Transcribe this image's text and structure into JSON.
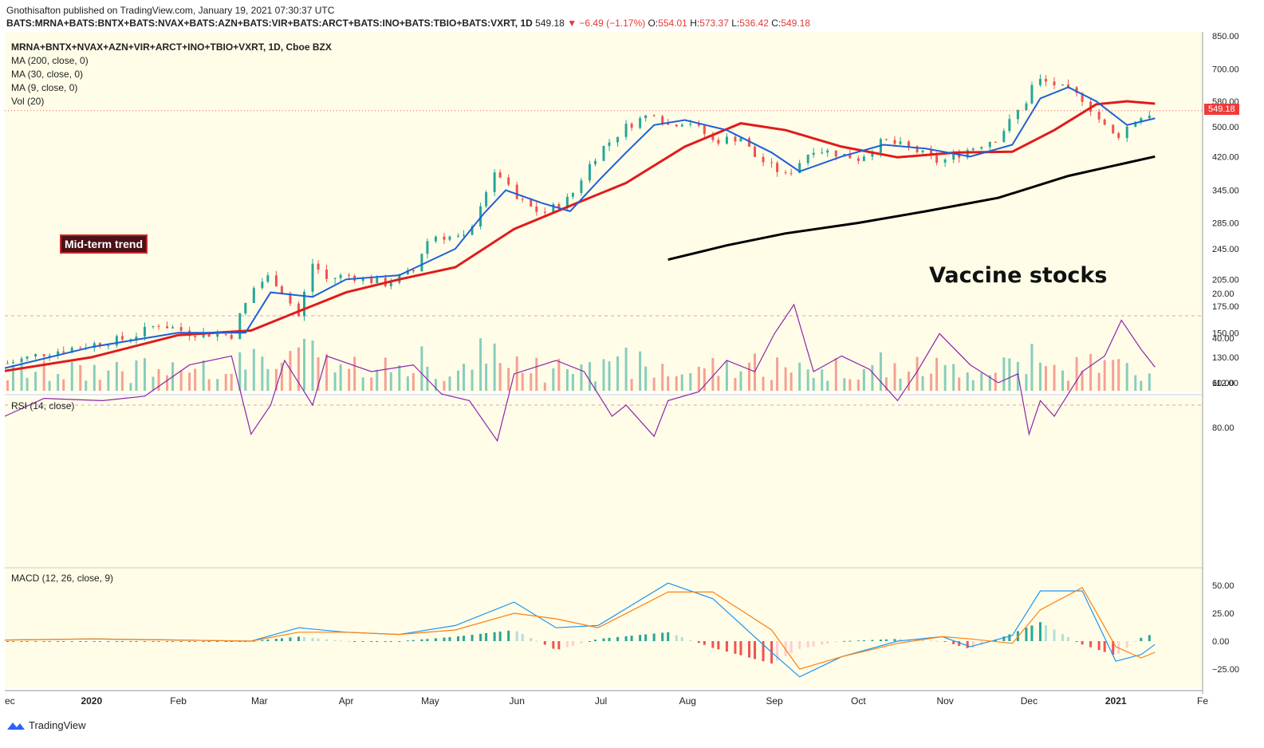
{
  "header": {
    "publisher_line": "Gnothisafton published on TradingView.com, January 19, 2021 07:30:37 UTC",
    "symbol": "BATS:MRNA+BATS:BNTX+BATS:NVAX+BATS:AZN+BATS:VIR+BATS:ARCT+BATS:INO+BATS:TBIO+BATS:VXRT, 1D",
    "last": "549.18",
    "change": "▼ −6.49 (−1.17%)",
    "o_label": "O:",
    "o_val": "554.01",
    "h_label": "H:",
    "h_val": "573.37",
    "l_label": "L:",
    "l_val": "536.42",
    "c_label": "C:",
    "c_val": "549.18"
  },
  "legend": {
    "title": "MRNA+BNTX+NVAX+AZN+VIR+ARCT+INO+TBIO+VXRT, 1D, Cboe BZX",
    "ma200": "MA (200, close, 0)",
    "ma30": "MA (30, close, 0)",
    "ma9": "MA (9, close, 0)",
    "vol": "Vol (20)",
    "rsi": "RSI (14, close)",
    "macd": "MACD (12, 26, close, 9)"
  },
  "annotations": {
    "trend_box": "Mid-term trend",
    "vaccine": "Vaccine stocks",
    "last_price_tag": "549.18"
  },
  "footer": {
    "brand": "TradingView"
  },
  "colors": {
    "ma9": "#1e5fd8",
    "ma30": "#e01b1b",
    "ma200": "#000000",
    "up": "#26a69a",
    "down": "#ef5350",
    "rsi": "#8e24aa",
    "macd": "#2196f3",
    "signal": "#ff7f0e",
    "pane_bg": "#fffde8"
  },
  "chart_data": [
    {
      "type": "candlestick",
      "title": "MRNA+BNTX+NVAX+AZN+VIR+ARCT+INO+TBIO+VXRT, 1D",
      "y_scale": "log",
      "y_ticks": [
        112,
        130,
        150,
        175,
        205,
        245,
        285,
        345,
        420,
        500,
        580,
        700,
        850
      ],
      "y_tick_labels": [
        "112.00",
        "130.00",
        "150.00",
        "175.00",
        "205.00",
        "245.00",
        "285.00",
        "345.00",
        "420.00",
        "500.00",
        "580.00",
        "700.00",
        "850.00"
      ],
      "x_labels": [
        "ec",
        "2020",
        "Feb",
        "Mar",
        "Apr",
        "May",
        "Jun",
        "Jul",
        "Aug",
        "Sep",
        "Oct",
        "Nov",
        "Dec",
        "2021",
        "Fe"
      ],
      "x_label_dates": [
        "2019-12-01",
        "2020-01-01",
        "2020-02-01",
        "2020-03-01",
        "2020-04-01",
        "2020-05-01",
        "2020-06-01",
        "2020-07-01",
        "2020-08-01",
        "2020-09-01",
        "2020-10-01",
        "2020-11-01",
        "2020-12-01",
        "2021-01-01",
        "2021-02-01"
      ],
      "x_range": [
        "2019-12-01",
        "2021-02-01"
      ],
      "close_series": [
        [
          "2019-12-01",
          125
        ],
        [
          "2019-12-15",
          133
        ],
        [
          "2020-01-01",
          140
        ],
        [
          "2020-01-15",
          146
        ],
        [
          "2020-01-25",
          158
        ],
        [
          "2020-02-05",
          150
        ],
        [
          "2020-02-20",
          148
        ],
        [
          "2020-02-28",
          195
        ],
        [
          "2020-03-05",
          210
        ],
        [
          "2020-03-15",
          165
        ],
        [
          "2020-03-20",
          225
        ],
        [
          "2020-03-25",
          205
        ],
        [
          "2020-04-01",
          210
        ],
        [
          "2020-04-15",
          200
        ],
        [
          "2020-04-25",
          215
        ],
        [
          "2020-05-01",
          265
        ],
        [
          "2020-05-15",
          260
        ],
        [
          "2020-05-20",
          335
        ],
        [
          "2020-05-25",
          385
        ],
        [
          "2020-05-31",
          330
        ],
        [
          "2020-06-10",
          300
        ],
        [
          "2020-06-20",
          330
        ],
        [
          "2020-06-30",
          430
        ],
        [
          "2020-07-10",
          500
        ],
        [
          "2020-07-20",
          545
        ],
        [
          "2020-07-25",
          505
        ],
        [
          "2020-08-01",
          520
        ],
        [
          "2020-08-10",
          460
        ],
        [
          "2020-08-20",
          470
        ],
        [
          "2020-08-25",
          420
        ],
        [
          "2020-09-05",
          375
        ],
        [
          "2020-09-15",
          440
        ],
        [
          "2020-09-25",
          425
        ],
        [
          "2020-10-01",
          415
        ],
        [
          "2020-10-10",
          460
        ],
        [
          "2020-10-20",
          440
        ],
        [
          "2020-10-30",
          405
        ],
        [
          "2020-11-10",
          440
        ],
        [
          "2020-11-20",
          470
        ],
        [
          "2020-11-30",
          580
        ],
        [
          "2020-12-03",
          660
        ],
        [
          "2020-12-10",
          640
        ],
        [
          "2020-12-20",
          590
        ],
        [
          "2020-12-28",
          500
        ],
        [
          "2021-01-01",
          470
        ],
        [
          "2021-01-08",
          520
        ],
        [
          "2021-01-15",
          549.18
        ]
      ],
      "ma9_series": [
        [
          "2019-12-01",
          122
        ],
        [
          "2020-01-01",
          138
        ],
        [
          "2020-02-01",
          150
        ],
        [
          "2020-02-25",
          150
        ],
        [
          "2020-03-05",
          190
        ],
        [
          "2020-03-20",
          185
        ],
        [
          "2020-04-01",
          205
        ],
        [
          "2020-04-20",
          210
        ],
        [
          "2020-05-10",
          245
        ],
        [
          "2020-05-20",
          300
        ],
        [
          "2020-05-28",
          345
        ],
        [
          "2020-06-10",
          320
        ],
        [
          "2020-06-20",
          305
        ],
        [
          "2020-07-01",
          370
        ],
        [
          "2020-07-10",
          430
        ],
        [
          "2020-07-20",
          505
        ],
        [
          "2020-07-31",
          520
        ],
        [
          "2020-08-15",
          490
        ],
        [
          "2020-08-31",
          430
        ],
        [
          "2020-09-10",
          385
        ],
        [
          "2020-09-25",
          420
        ],
        [
          "2020-10-10",
          450
        ],
        [
          "2020-10-25",
          440
        ],
        [
          "2020-11-10",
          420
        ],
        [
          "2020-11-25",
          450
        ],
        [
          "2020-12-05",
          590
        ],
        [
          "2020-12-15",
          630
        ],
        [
          "2020-12-25",
          580
        ],
        [
          "2021-01-05",
          505
        ],
        [
          "2021-01-15",
          525
        ]
      ],
      "ma30_series": [
        [
          "2019-12-01",
          120
        ],
        [
          "2020-01-01",
          130
        ],
        [
          "2020-02-01",
          148
        ],
        [
          "2020-02-27",
          152
        ],
        [
          "2020-03-15",
          170
        ],
        [
          "2020-04-01",
          190
        ],
        [
          "2020-04-20",
          205
        ],
        [
          "2020-05-10",
          220
        ],
        [
          "2020-05-31",
          275
        ],
        [
          "2020-06-20",
          315
        ],
        [
          "2020-07-10",
          360
        ],
        [
          "2020-07-31",
          445
        ],
        [
          "2020-08-20",
          510
        ],
        [
          "2020-09-05",
          490
        ],
        [
          "2020-09-25",
          445
        ],
        [
          "2020-10-15",
          418
        ],
        [
          "2020-11-05",
          430
        ],
        [
          "2020-11-25",
          432
        ],
        [
          "2020-12-10",
          490
        ],
        [
          "2020-12-25",
          570
        ],
        [
          "2021-01-05",
          580
        ],
        [
          "2021-01-15",
          572
        ]
      ],
      "ma200_series": [
        [
          "2020-07-25",
          230
        ],
        [
          "2020-08-15",
          250
        ],
        [
          "2020-09-05",
          268
        ],
        [
          "2020-10-01",
          285
        ],
        [
          "2020-10-25",
          305
        ],
        [
          "2020-11-20",
          330
        ],
        [
          "2020-12-15",
          375
        ],
        [
          "2021-01-05",
          405
        ],
        [
          "2021-01-15",
          420
        ]
      ],
      "last_price": 549.18,
      "volume": {
        "avg_label": "Vol (20)"
      }
    },
    {
      "type": "line",
      "title": "RSI (14, close)",
      "y_ticks": [
        20,
        40,
        60,
        80
      ],
      "y_tick_labels": [
        "20.00",
        "40.00",
        "60.00",
        "80.00"
      ],
      "band": [
        30,
        70
      ],
      "series": [
        [
          "2019-12-01",
          75
        ],
        [
          "2019-12-15",
          67
        ],
        [
          "2020-01-05",
          68
        ],
        [
          "2020-01-20",
          66
        ],
        [
          "2020-02-05",
          52
        ],
        [
          "2020-02-20",
          48
        ],
        [
          "2020-02-27",
          83
        ],
        [
          "2020-03-05",
          70
        ],
        [
          "2020-03-10",
          50
        ],
        [
          "2020-03-20",
          70
        ],
        [
          "2020-03-25",
          48
        ],
        [
          "2020-04-10",
          55
        ],
        [
          "2020-04-25",
          52
        ],
        [
          "2020-05-05",
          65
        ],
        [
          "2020-05-15",
          68
        ],
        [
          "2020-05-25",
          86
        ],
        [
          "2020-05-31",
          56
        ],
        [
          "2020-06-15",
          50
        ],
        [
          "2020-06-25",
          55
        ],
        [
          "2020-07-05",
          75
        ],
        [
          "2020-07-10",
          70
        ],
        [
          "2020-07-20",
          84
        ],
        [
          "2020-07-25",
          68
        ],
        [
          "2020-08-05",
          64
        ],
        [
          "2020-08-15",
          50
        ],
        [
          "2020-08-25",
          55
        ],
        [
          "2020-09-01",
          38
        ],
        [
          "2020-09-08",
          25
        ],
        [
          "2020-09-15",
          55
        ],
        [
          "2020-09-25",
          48
        ],
        [
          "2020-10-05",
          54
        ],
        [
          "2020-10-15",
          68
        ],
        [
          "2020-10-22",
          55
        ],
        [
          "2020-10-30",
          38
        ],
        [
          "2020-11-10",
          52
        ],
        [
          "2020-11-20",
          60
        ],
        [
          "2020-11-27",
          56
        ],
        [
          "2020-12-01",
          83
        ],
        [
          "2020-12-05",
          68
        ],
        [
          "2020-12-10",
          75
        ],
        [
          "2020-12-20",
          55
        ],
        [
          "2020-12-28",
          48
        ],
        [
          "2021-01-03",
          32
        ],
        [
          "2021-01-10",
          45
        ],
        [
          "2021-01-15",
          53
        ]
      ]
    },
    {
      "type": "line",
      "title": "MACD (12, 26, close, 9)",
      "y_ticks": [
        -25,
        0,
        25,
        50
      ],
      "y_tick_labels": [
        "−25.00",
        "0.00",
        "25.00",
        "50.00"
      ],
      "series": [
        {
          "name": "MACD",
          "points": [
            [
              "2019-12-01",
              1
            ],
            [
              "2020-01-01",
              2
            ],
            [
              "2020-02-01",
              1
            ],
            [
              "2020-02-27",
              0
            ],
            [
              "2020-03-15",
              12
            ],
            [
              "2020-04-01",
              8
            ],
            [
              "2020-04-20",
              6
            ],
            [
              "2020-05-10",
              14
            ],
            [
              "2020-05-31",
              35
            ],
            [
              "2020-06-15",
              12
            ],
            [
              "2020-06-30",
              14
            ],
            [
              "2020-07-25",
              52
            ],
            [
              "2020-08-10",
              38
            ],
            [
              "2020-08-31",
              -10
            ],
            [
              "2020-09-10",
              -32
            ],
            [
              "2020-09-25",
              -14
            ],
            [
              "2020-10-15",
              0
            ],
            [
              "2020-10-31",
              4
            ],
            [
              "2020-11-10",
              -5
            ],
            [
              "2020-11-25",
              5
            ],
            [
              "2020-12-05",
              45
            ],
            [
              "2020-12-20",
              45
            ],
            [
              "2021-01-01",
              -18
            ],
            [
              "2021-01-10",
              -12
            ],
            [
              "2021-01-15",
              -3
            ]
          ]
        },
        {
          "name": "Signal",
          "points": [
            [
              "2019-12-01",
              1
            ],
            [
              "2020-01-01",
              2
            ],
            [
              "2020-02-01",
              1
            ],
            [
              "2020-02-27",
              0
            ],
            [
              "2020-03-15",
              8
            ],
            [
              "2020-04-01",
              8
            ],
            [
              "2020-04-20",
              6
            ],
            [
              "2020-05-10",
              10
            ],
            [
              "2020-05-31",
              25
            ],
            [
              "2020-06-15",
              20
            ],
            [
              "2020-06-30",
              12
            ],
            [
              "2020-07-25",
              44
            ],
            [
              "2020-08-10",
              44
            ],
            [
              "2020-08-31",
              10
            ],
            [
              "2020-09-10",
              -25
            ],
            [
              "2020-09-25",
              -14
            ],
            [
              "2020-10-15",
              -2
            ],
            [
              "2020-10-31",
              4
            ],
            [
              "2020-11-10",
              2
            ],
            [
              "2020-11-25",
              -2
            ],
            [
              "2020-12-05",
              28
            ],
            [
              "2020-12-20",
              48
            ],
            [
              "2021-01-01",
              -5
            ],
            [
              "2021-01-10",
              -15
            ],
            [
              "2021-01-15",
              -10
            ]
          ]
        }
      ]
    }
  ]
}
